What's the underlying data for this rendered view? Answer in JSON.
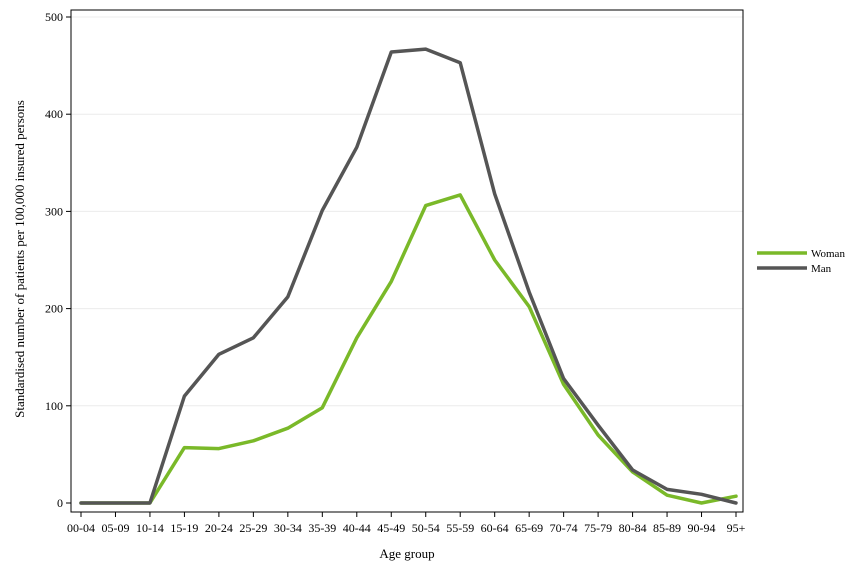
{
  "chart_data": {
    "type": "line",
    "title": "",
    "xlabel": "Age group",
    "ylabel": "Standardised number of patients per 100,000 insured persons",
    "categories": [
      "00-04",
      "05-09",
      "10-14",
      "15-19",
      "20-24",
      "25-29",
      "30-34",
      "35-39",
      "40-44",
      "45-49",
      "50-54",
      "55-59",
      "60-64",
      "65-69",
      "70-74",
      "75-79",
      "80-84",
      "85-89",
      "90-94",
      "95+"
    ],
    "ylim": [
      0,
      500
    ],
    "yticks": [
      "0",
      "100",
      "200",
      "300",
      "400",
      "500"
    ],
    "grid": true,
    "legend_position": "right",
    "series": [
      {
        "name": "Woman",
        "color": "#7ab929",
        "values": [
          0,
          0,
          0,
          57,
          56,
          64,
          77,
          98,
          170,
          228,
          306,
          317,
          250,
          202,
          122,
          70,
          32,
          8,
          0,
          7
        ]
      },
      {
        "name": "Man",
        "color": "#555555",
        "values": [
          0,
          0,
          0,
          110,
          153,
          170,
          212,
          301,
          366,
          464,
          467,
          453,
          318,
          217,
          128,
          80,
          34,
          14,
          9,
          0
        ]
      }
    ]
  }
}
